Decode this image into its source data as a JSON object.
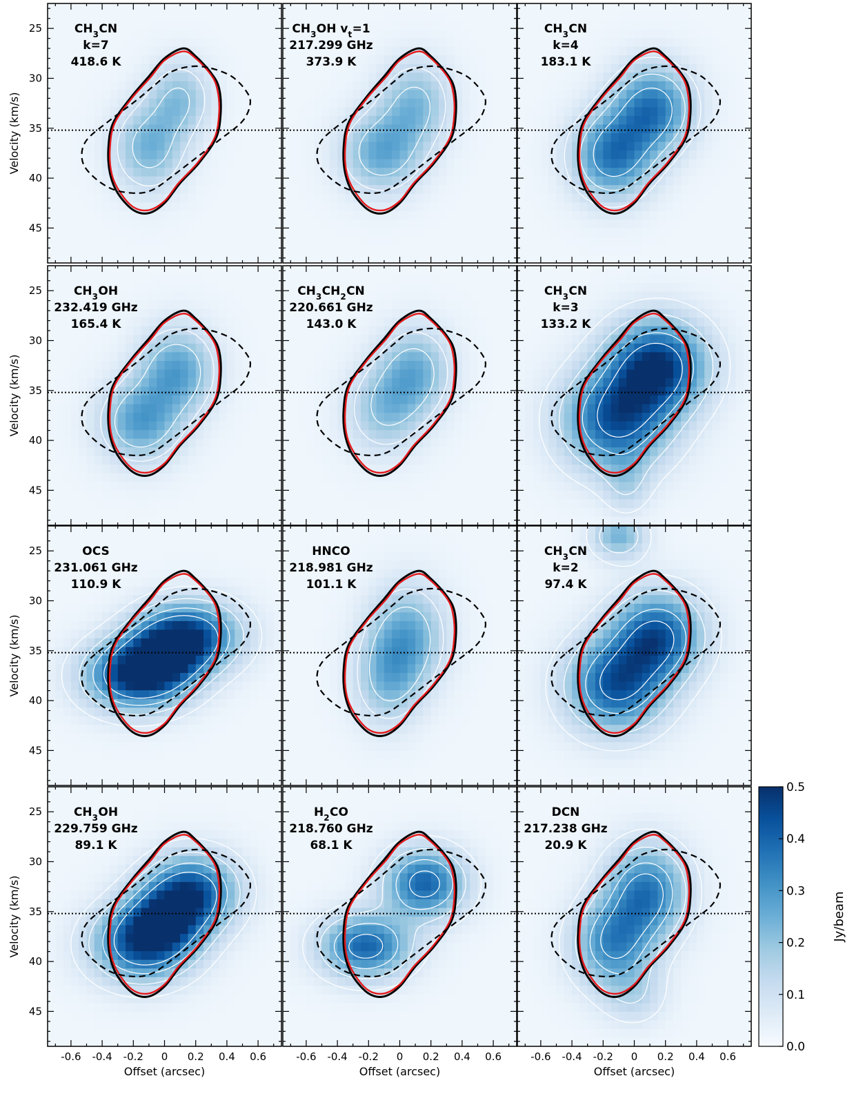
{
  "chart_data": {
    "type": "heatmap",
    "layout": {
      "rows": 4,
      "cols": 3
    },
    "xlabel": "Offset (arcsec)",
    "ylabel": "Velocity (km/s)",
    "xlim": [
      -0.75,
      0.75
    ],
    "ylim": [
      48.5,
      22.5
    ],
    "x_ticks": [
      -0.6,
      -0.4,
      -0.2,
      0,
      0.2,
      0.4,
      0.6
    ],
    "x_tick_labels": [
      "-0.6",
      "-0.4",
      "-0.2",
      "0",
      "0.2",
      "0.4",
      "0.6"
    ],
    "y_ticks": [
      25,
      30,
      35,
      40,
      45
    ],
    "y_tick_labels": [
      "25",
      "30",
      "35",
      "40",
      "45"
    ],
    "systemic_velocity": 35.2,
    "colorbar": {
      "label": "Jy/beam",
      "range": [
        0.0,
        0.5
      ],
      "ticks": [
        0.0,
        0.1,
        0.2,
        0.3,
        0.4,
        0.5
      ],
      "tick_labels": [
        "0.0",
        "0.1",
        "0.2",
        "0.3",
        "0.4",
        "0.5"
      ],
      "colors": [
        "#f7fbff",
        "#deebf7",
        "#c6dbef",
        "#9ecae1",
        "#6baed6",
        "#4292c6",
        "#2171b5",
        "#08519c",
        "#08306b"
      ]
    },
    "model_curves": [
      {
        "style": "solid black",
        "points": [
          [
            0.12,
            27.0
          ],
          [
            0.2,
            27.8
          ],
          [
            0.3,
            29.5
          ],
          [
            0.35,
            31.0
          ],
          [
            0.36,
            33.5
          ],
          [
            0.33,
            36.0
          ],
          [
            0.22,
            38.5
          ],
          [
            0.1,
            40.5
          ],
          [
            0.0,
            42.5
          ],
          [
            -0.1,
            43.5
          ],
          [
            -0.2,
            43.2
          ],
          [
            -0.3,
            41.5
          ],
          [
            -0.35,
            39.5
          ],
          [
            -0.36,
            37.0
          ],
          [
            -0.33,
            34.5
          ],
          [
            -0.22,
            32.0
          ],
          [
            -0.1,
            29.8
          ],
          [
            0.0,
            28.0
          ]
        ]
      },
      {
        "style": "solid red",
        "points": [
          [
            0.12,
            27.3
          ],
          [
            0.2,
            28.0
          ],
          [
            0.3,
            29.7
          ],
          [
            0.34,
            31.2
          ],
          [
            0.35,
            33.5
          ],
          [
            0.32,
            36.0
          ],
          [
            0.21,
            38.5
          ],
          [
            0.09,
            40.5
          ],
          [
            0.0,
            42.3
          ],
          [
            -0.1,
            43.2
          ],
          [
            -0.2,
            42.9
          ],
          [
            -0.29,
            41.3
          ],
          [
            -0.34,
            39.5
          ],
          [
            -0.35,
            37.0
          ],
          [
            -0.32,
            34.5
          ],
          [
            -0.21,
            32.0
          ],
          [
            -0.09,
            29.9
          ],
          [
            0.0,
            28.2
          ]
        ]
      },
      {
        "style": "dashed black",
        "points": [
          [
            0.3,
            29.0
          ],
          [
            0.43,
            29.8
          ],
          [
            0.52,
            31.2
          ],
          [
            0.55,
            32.5
          ],
          [
            0.5,
            34.3
          ],
          [
            0.35,
            36.2
          ],
          [
            0.2,
            38.0
          ],
          [
            0.05,
            39.8
          ],
          [
            -0.08,
            41.2
          ],
          [
            -0.2,
            41.5
          ],
          [
            -0.35,
            41.0
          ],
          [
            -0.48,
            39.5
          ],
          [
            -0.53,
            38.0
          ],
          [
            -0.5,
            36.2
          ],
          [
            -0.35,
            34.2
          ],
          [
            -0.18,
            32.2
          ],
          [
            -0.05,
            30.5
          ],
          [
            0.05,
            29.3
          ],
          [
            0.18,
            28.8
          ]
        ]
      }
    ],
    "panels": [
      {
        "name": "CH3CN k=7",
        "label": [
          {
            "main": "CH",
            "sub": "3",
            "rest": "CN"
          },
          "k=7",
          "418.6 K"
        ],
        "blobs": [
          [
            0.1,
            32.0,
            0.14,
            2.6,
            0.18
          ],
          [
            -0.1,
            37.0,
            0.16,
            3.0,
            0.22
          ]
        ],
        "contours": [
          0.12,
          0.2
        ]
      },
      {
        "name": "CH3OH vt=1 217.299 GHz",
        "label": [
          {
            "main": "CH",
            "sub": "3",
            "rest": "OH v",
            "sub2": "t",
            "rest2": "=1"
          },
          "217.299 GHz",
          "373.9 K"
        ],
        "blobs": [
          [
            0.1,
            32.5,
            0.16,
            3.0,
            0.2
          ],
          [
            -0.12,
            37.5,
            0.18,
            2.8,
            0.24
          ]
        ],
        "contours": [
          0.12,
          0.2
        ]
      },
      {
        "name": "CH3CN k=4",
        "label": [
          {
            "main": "CH",
            "sub": "3",
            "rest": "CN"
          },
          "k=4",
          "183.1 K"
        ],
        "blobs": [
          [
            0.12,
            33.0,
            0.18,
            3.0,
            0.34
          ],
          [
            -0.14,
            37.8,
            0.18,
            3.0,
            0.34
          ]
        ],
        "contours": [
          0.1,
          0.2,
          0.3
        ]
      },
      {
        "name": "CH3OH 232.419 GHz",
        "label": [
          {
            "main": "CH",
            "sub": "3",
            "rest": "OH"
          },
          "232.419 GHz",
          "165.4 K"
        ],
        "blobs": [
          [
            0.08,
            33.0,
            0.17,
            3.0,
            0.26
          ],
          [
            -0.16,
            38.2,
            0.18,
            2.8,
            0.26
          ]
        ],
        "contours": [
          0.12,
          0.2
        ]
      },
      {
        "name": "CH3CH2CN 220.661 GHz",
        "label": [
          {
            "main": "CH",
            "sub": "3",
            "rest": "CH",
            "sub2": "2",
            "rest2": "CN"
          },
          "220.661 GHz",
          "143.0 K"
        ],
        "blobs": [
          [
            0.1,
            33.0,
            0.16,
            3.0,
            0.22
          ],
          [
            -0.1,
            37.0,
            0.17,
            3.0,
            0.18
          ]
        ],
        "contours": [
          0.12,
          0.2
        ]
      },
      {
        "name": "CH3CN k=3",
        "label": [
          {
            "main": "CH",
            "sub": "3",
            "rest": "CN"
          },
          "k=3",
          "133.2 K"
        ],
        "blobs": [
          [
            0.15,
            32.5,
            0.22,
            3.2,
            0.46
          ],
          [
            -0.12,
            38.0,
            0.24,
            3.5,
            0.4
          ],
          [
            -0.05,
            44.5,
            0.1,
            2.0,
            0.1
          ]
        ],
        "contours": [
          0.07,
          0.15,
          0.3,
          0.4
        ]
      },
      {
        "name": "OCS 231.061 GHz",
        "label": [
          {
            "main": "OCS"
          },
          "231.061 GHz",
          "110.9 K"
        ],
        "blobs": [
          [
            0.18,
            33.5,
            0.22,
            2.4,
            0.38
          ],
          [
            -0.2,
            37.5,
            0.22,
            2.4,
            0.44
          ],
          [
            0.0,
            35.5,
            0.18,
            2.5,
            0.3
          ]
        ],
        "contours": [
          0.07,
          0.15,
          0.25,
          0.35
        ]
      },
      {
        "name": "HNCO 218.981 GHz",
        "label": [
          {
            "main": "HNCO"
          },
          "218.981 GHz",
          "101.1 K"
        ],
        "blobs": [
          [
            0.05,
            33.5,
            0.17,
            3.5,
            0.24
          ],
          [
            -0.08,
            38.0,
            0.15,
            3.2,
            0.18
          ]
        ],
        "contours": [
          0.12,
          0.2
        ]
      },
      {
        "name": "CH3CN k=2",
        "label": [
          {
            "main": "CH",
            "sub": "3",
            "rest": "CN"
          },
          "k=2",
          "97.4 K"
        ],
        "blobs": [
          [
            0.15,
            33.5,
            0.2,
            3.0,
            0.4
          ],
          [
            -0.12,
            38.5,
            0.22,
            3.2,
            0.4
          ],
          [
            -0.1,
            23.5,
            0.12,
            1.6,
            0.22
          ]
        ],
        "contours": [
          0.07,
          0.15,
          0.3,
          0.4
        ]
      },
      {
        "name": "CH3OH 229.759 GHz",
        "label": [
          {
            "main": "CH",
            "sub": "3",
            "rest": "OH"
          },
          "229.759 GHz",
          "89.1 K"
        ],
        "blobs": [
          [
            0.18,
            33.0,
            0.2,
            2.6,
            0.4
          ],
          [
            -0.15,
            38.3,
            0.22,
            2.6,
            0.4
          ],
          [
            0.0,
            35.8,
            0.18,
            2.4,
            0.28
          ]
        ],
        "contours": [
          0.07,
          0.15,
          0.25,
          0.35
        ]
      },
      {
        "name": "H2CO 218.760 GHz",
        "label": [
          {
            "main": "H",
            "sub": "2",
            "rest": "CO"
          },
          "218.760 GHz",
          "68.1 K"
        ],
        "blobs": [
          [
            0.16,
            32.2,
            0.18,
            2.4,
            0.38
          ],
          [
            -0.22,
            38.5,
            0.2,
            2.2,
            0.38
          ]
        ],
        "contours": [
          0.07,
          0.15,
          0.25,
          0.35
        ]
      },
      {
        "name": "DCN 217.238 GHz",
        "label": [
          {
            "main": "DCN"
          },
          "217.238 GHz",
          "20.9 K"
        ],
        "blobs": [
          [
            0.08,
            33.0,
            0.18,
            3.2,
            0.34
          ],
          [
            -0.14,
            38.3,
            0.18,
            3.0,
            0.3
          ],
          [
            0.0,
            43.5,
            0.14,
            2.0,
            0.1
          ]
        ],
        "contours": [
          0.07,
          0.15,
          0.25,
          0.32
        ]
      }
    ]
  }
}
